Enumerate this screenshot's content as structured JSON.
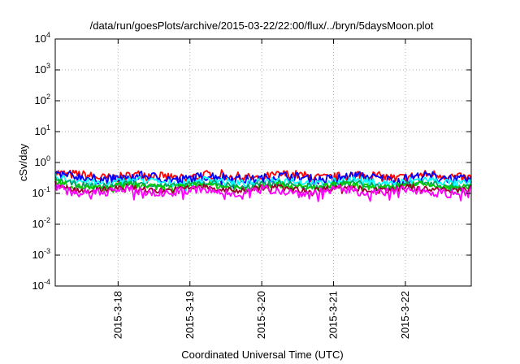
{
  "chart_data": {
    "type": "line",
    "title": "/data/run/goesPlots/archive/2015-03-22/22:00/flux/../bryn/5daysMoon.plot",
    "xlabel": "Coordinated Universal Time (UTC)",
    "ylabel": "cSv/day",
    "y_scale": "log",
    "ylim": [
      0.0001,
      10000
    ],
    "xlim": [
      "2015-03-17T03:00",
      "2015-03-22T22:00"
    ],
    "grid": true,
    "y_ticks": [
      {
        "value": 0.0001,
        "base": "10",
        "exp": "-4"
      },
      {
        "value": 0.001,
        "base": "10",
        "exp": "-3"
      },
      {
        "value": 0.01,
        "base": "10",
        "exp": "-2"
      },
      {
        "value": 0.1,
        "base": "10",
        "exp": "-1"
      },
      {
        "value": 1,
        "base": "10",
        "exp": "0"
      },
      {
        "value": 10,
        "base": "10",
        "exp": "1"
      },
      {
        "value": 100,
        "base": "10",
        "exp": "2"
      },
      {
        "value": 1000,
        "base": "10",
        "exp": "3"
      },
      {
        "value": 10000,
        "base": "10",
        "exp": "4"
      }
    ],
    "x_ticks": [
      {
        "value": "2015-03-18T00:00",
        "label": "2015-3-18"
      },
      {
        "value": "2015-03-19T00:00",
        "label": "2015-3-19"
      },
      {
        "value": "2015-03-20T00:00",
        "label": "2015-3-20"
      },
      {
        "value": "2015-03-21T00:00",
        "label": "2015-3-21"
      },
      {
        "value": "2015-03-22T00:00",
        "label": "2015-3-22"
      }
    ],
    "series": [
      {
        "color": "#ff0000",
        "level": 0.36,
        "spread": 0.15
      },
      {
        "color": "#0000ff",
        "level": 0.32,
        "spread": 0.15
      },
      {
        "color": "#00ffff",
        "level": 0.24,
        "spread": 0.12
      },
      {
        "color": "#00a060",
        "level": 0.19,
        "spread": 0.1
      },
      {
        "color": "#00cc00",
        "level": 0.17,
        "spread": 0.1
      },
      {
        "color": "#a00030",
        "level": 0.14,
        "spread": 0.1
      },
      {
        "color": "#ff00ff",
        "level": 0.115,
        "spread": 0.14
      }
    ]
  }
}
